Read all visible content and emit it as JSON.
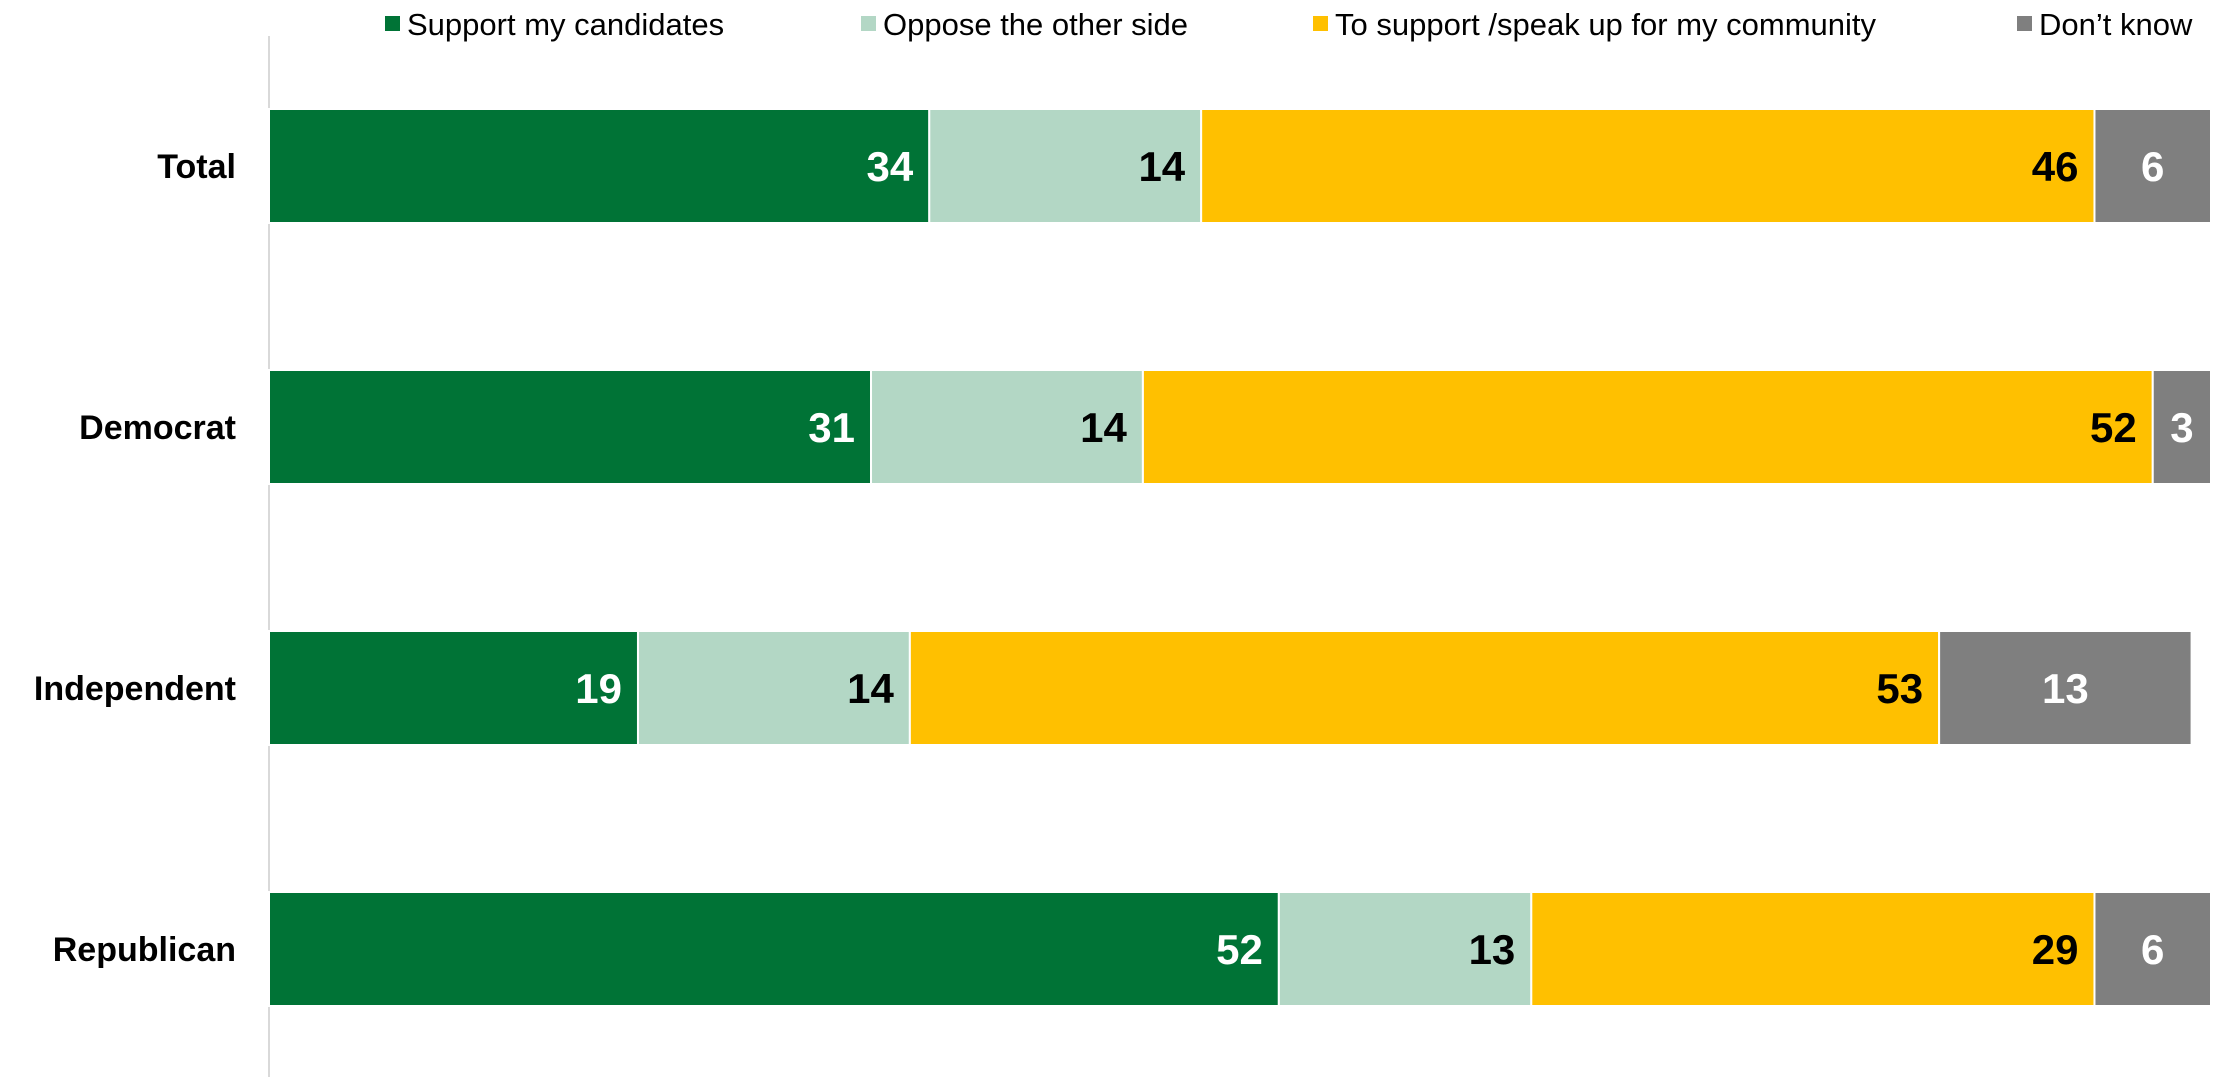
{
  "chart_data": {
    "type": "bar",
    "orientation": "horizontal",
    "stacked": true,
    "categories": [
      "Total",
      "Democrat",
      "Independent",
      "Republican"
    ],
    "series": [
      {
        "name": "Support my candidates",
        "color": "#007336",
        "label_color": "#ffffff",
        "values": [
          34,
          31,
          19,
          52
        ]
      },
      {
        "name": "Oppose the other side",
        "color": "#b3d7c5",
        "label_color": "#000000",
        "values": [
          14,
          14,
          14,
          13
        ]
      },
      {
        "name": "To support /speak up for my community",
        "color": "#ffc000",
        "label_color": "#000000",
        "values": [
          46,
          52,
          53,
          29
        ]
      },
      {
        "name": "Don’t know",
        "color": "#7f7f7f",
        "label_color": "#ffffff",
        "values": [
          6,
          3,
          13,
          6
        ]
      }
    ],
    "xlim": [
      0,
      100
    ],
    "legend_position": "top",
    "grid": false
  }
}
